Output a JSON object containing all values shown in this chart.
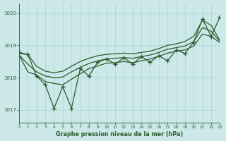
{
  "xlabel": "Graphe pression niveau de la mer (hPa)",
  "xlim": [
    0,
    23
  ],
  "ylim": [
    1016.6,
    1020.3
  ],
  "yticks": [
    1017,
    1018,
    1019,
    1020
  ],
  "xticks": [
    0,
    1,
    2,
    3,
    4,
    5,
    6,
    7,
    8,
    9,
    10,
    11,
    12,
    13,
    14,
    15,
    16,
    17,
    18,
    19,
    20,
    21,
    22,
    23
  ],
  "bg_color": "#cce8e8",
  "grid_color": "#aad4d4",
  "line_color": "#2a5c2a",
  "hours": [
    0,
    1,
    2,
    3,
    4,
    5,
    6,
    7,
    8,
    9,
    10,
    11,
    12,
    13,
    14,
    15,
    16,
    17,
    18,
    19,
    20,
    21,
    22,
    23
  ],
  "p_upper": [
    1018.75,
    1018.72,
    1018.35,
    1018.2,
    1018.15,
    1018.2,
    1018.35,
    1018.5,
    1018.6,
    1018.68,
    1018.72,
    1018.74,
    1018.76,
    1018.74,
    1018.78,
    1018.82,
    1018.9,
    1019.0,
    1019.05,
    1019.12,
    1019.28,
    1019.78,
    1019.62,
    1019.15
  ],
  "p_mid": [
    1018.7,
    1018.42,
    1018.18,
    1018.05,
    1018.0,
    1018.02,
    1018.18,
    1018.32,
    1018.44,
    1018.52,
    1018.58,
    1018.6,
    1018.62,
    1018.6,
    1018.65,
    1018.7,
    1018.78,
    1018.88,
    1018.93,
    1018.98,
    1019.12,
    1019.55,
    1019.44,
    1019.12
  ],
  "p_lower": [
    1018.7,
    1018.18,
    1018.08,
    1017.88,
    1017.82,
    1017.78,
    1017.95,
    1018.12,
    1018.28,
    1018.36,
    1018.45,
    1018.46,
    1018.5,
    1018.46,
    1018.52,
    1018.58,
    1018.66,
    1018.76,
    1018.82,
    1018.86,
    1018.98,
    1019.35,
    1019.28,
    1019.08
  ],
  "p_zz": [
    1018.78,
    1018.72,
    1018.05,
    1017.78,
    1017.05,
    1017.72,
    1017.05,
    1018.28,
    1018.05,
    1018.48,
    1018.58,
    1018.42,
    1018.62,
    1018.42,
    1018.65,
    1018.48,
    1018.68,
    1018.52,
    1018.86,
    1018.75,
    1019.1,
    1019.82,
    1019.28,
    1019.88
  ]
}
